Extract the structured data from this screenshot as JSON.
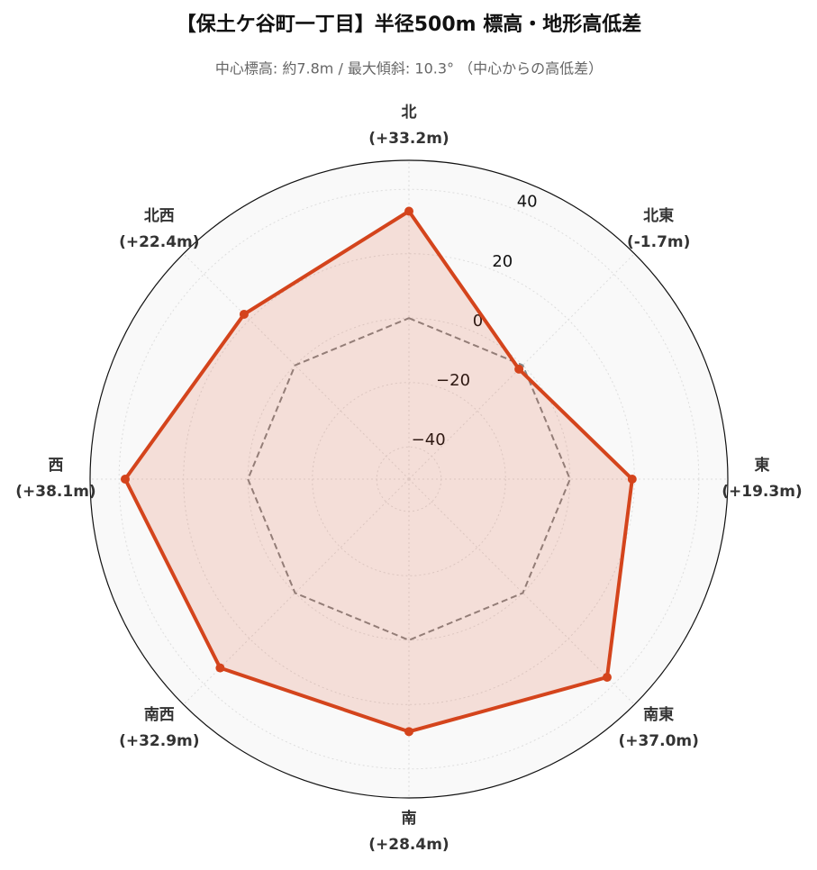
{
  "chart_data": {
    "type": "radar",
    "title": "【保土ケ谷町一丁目】半径500m 標高・地形高低差",
    "subtitle": "中心標高: 約7.8m / 最大傾斜: 10.3° （中心からの高低差）",
    "categories": [
      "北",
      "北東",
      "東",
      "南東",
      "南",
      "南西",
      "西",
      "北西"
    ],
    "values": [
      33.2,
      -1.7,
      19.3,
      37.0,
      28.4,
      32.9,
      38.1,
      22.4
    ],
    "value_labels": [
      "(+33.2m)",
      "(-1.7m)",
      "(+19.3m)",
      "(+37.0m)",
      "(+28.4m)",
      "(+32.9m)",
      "(+38.1m)",
      "(+22.4m)"
    ],
    "color": "#d4441c",
    "reference_line": 0,
    "ylim": [
      -50,
      49
    ],
    "yticks": [
      {
        "value": -40,
        "label": "−40"
      },
      {
        "value": -20,
        "label": "−20"
      },
      0,
      20,
      40
    ],
    "grid": true
  }
}
